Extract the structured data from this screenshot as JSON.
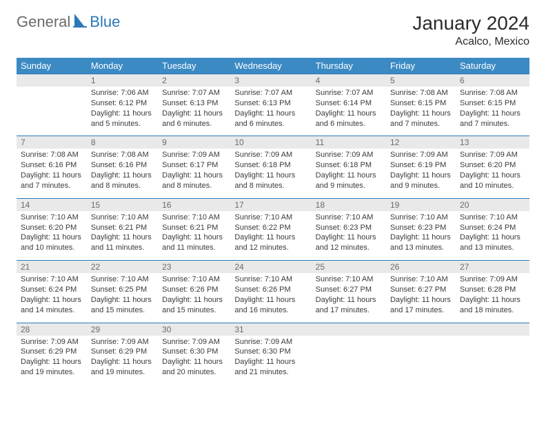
{
  "logo": {
    "text1": "General",
    "text2": "Blue",
    "accent": "#2a78b8",
    "text1_color": "#6a6a6a"
  },
  "title": "January 2024",
  "location": "Acalco, Mexico",
  "colors": {
    "header_bg": "#3b8ac4",
    "header_text": "#ffffff",
    "daynum_bg": "#e9e9e9",
    "daynum_text": "#6a6a6a",
    "cell_text": "#3a3a3a",
    "rule": "#2a78b8"
  },
  "dayNames": [
    "Sunday",
    "Monday",
    "Tuesday",
    "Wednesday",
    "Thursday",
    "Friday",
    "Saturday"
  ],
  "weeks": [
    [
      null,
      {
        "n": "1",
        "sr": "7:06 AM",
        "ss": "6:12 PM",
        "dl": "11 hours and 5 minutes."
      },
      {
        "n": "2",
        "sr": "7:07 AM",
        "ss": "6:13 PM",
        "dl": "11 hours and 6 minutes."
      },
      {
        "n": "3",
        "sr": "7:07 AM",
        "ss": "6:13 PM",
        "dl": "11 hours and 6 minutes."
      },
      {
        "n": "4",
        "sr": "7:07 AM",
        "ss": "6:14 PM",
        "dl": "11 hours and 6 minutes."
      },
      {
        "n": "5",
        "sr": "7:08 AM",
        "ss": "6:15 PM",
        "dl": "11 hours and 7 minutes."
      },
      {
        "n": "6",
        "sr": "7:08 AM",
        "ss": "6:15 PM",
        "dl": "11 hours and 7 minutes."
      }
    ],
    [
      {
        "n": "7",
        "sr": "7:08 AM",
        "ss": "6:16 PM",
        "dl": "11 hours and 7 minutes."
      },
      {
        "n": "8",
        "sr": "7:08 AM",
        "ss": "6:16 PM",
        "dl": "11 hours and 8 minutes."
      },
      {
        "n": "9",
        "sr": "7:09 AM",
        "ss": "6:17 PM",
        "dl": "11 hours and 8 minutes."
      },
      {
        "n": "10",
        "sr": "7:09 AM",
        "ss": "6:18 PM",
        "dl": "11 hours and 8 minutes."
      },
      {
        "n": "11",
        "sr": "7:09 AM",
        "ss": "6:18 PM",
        "dl": "11 hours and 9 minutes."
      },
      {
        "n": "12",
        "sr": "7:09 AM",
        "ss": "6:19 PM",
        "dl": "11 hours and 9 minutes."
      },
      {
        "n": "13",
        "sr": "7:09 AM",
        "ss": "6:20 PM",
        "dl": "11 hours and 10 minutes."
      }
    ],
    [
      {
        "n": "14",
        "sr": "7:10 AM",
        "ss": "6:20 PM",
        "dl": "11 hours and 10 minutes."
      },
      {
        "n": "15",
        "sr": "7:10 AM",
        "ss": "6:21 PM",
        "dl": "11 hours and 11 minutes."
      },
      {
        "n": "16",
        "sr": "7:10 AM",
        "ss": "6:21 PM",
        "dl": "11 hours and 11 minutes."
      },
      {
        "n": "17",
        "sr": "7:10 AM",
        "ss": "6:22 PM",
        "dl": "11 hours and 12 minutes."
      },
      {
        "n": "18",
        "sr": "7:10 AM",
        "ss": "6:23 PM",
        "dl": "11 hours and 12 minutes."
      },
      {
        "n": "19",
        "sr": "7:10 AM",
        "ss": "6:23 PM",
        "dl": "11 hours and 13 minutes."
      },
      {
        "n": "20",
        "sr": "7:10 AM",
        "ss": "6:24 PM",
        "dl": "11 hours and 13 minutes."
      }
    ],
    [
      {
        "n": "21",
        "sr": "7:10 AM",
        "ss": "6:24 PM",
        "dl": "11 hours and 14 minutes."
      },
      {
        "n": "22",
        "sr": "7:10 AM",
        "ss": "6:25 PM",
        "dl": "11 hours and 15 minutes."
      },
      {
        "n": "23",
        "sr": "7:10 AM",
        "ss": "6:26 PM",
        "dl": "11 hours and 15 minutes."
      },
      {
        "n": "24",
        "sr": "7:10 AM",
        "ss": "6:26 PM",
        "dl": "11 hours and 16 minutes."
      },
      {
        "n": "25",
        "sr": "7:10 AM",
        "ss": "6:27 PM",
        "dl": "11 hours and 17 minutes."
      },
      {
        "n": "26",
        "sr": "7:10 AM",
        "ss": "6:27 PM",
        "dl": "11 hours and 17 minutes."
      },
      {
        "n": "27",
        "sr": "7:09 AM",
        "ss": "6:28 PM",
        "dl": "11 hours and 18 minutes."
      }
    ],
    [
      {
        "n": "28",
        "sr": "7:09 AM",
        "ss": "6:29 PM",
        "dl": "11 hours and 19 minutes."
      },
      {
        "n": "29",
        "sr": "7:09 AM",
        "ss": "6:29 PM",
        "dl": "11 hours and 19 minutes."
      },
      {
        "n": "30",
        "sr": "7:09 AM",
        "ss": "6:30 PM",
        "dl": "11 hours and 20 minutes."
      },
      {
        "n": "31",
        "sr": "7:09 AM",
        "ss": "6:30 PM",
        "dl": "11 hours and 21 minutes."
      },
      null,
      null,
      null
    ]
  ],
  "labels": {
    "sunrise": "Sunrise:",
    "sunset": "Sunset:",
    "daylight": "Daylight:"
  }
}
